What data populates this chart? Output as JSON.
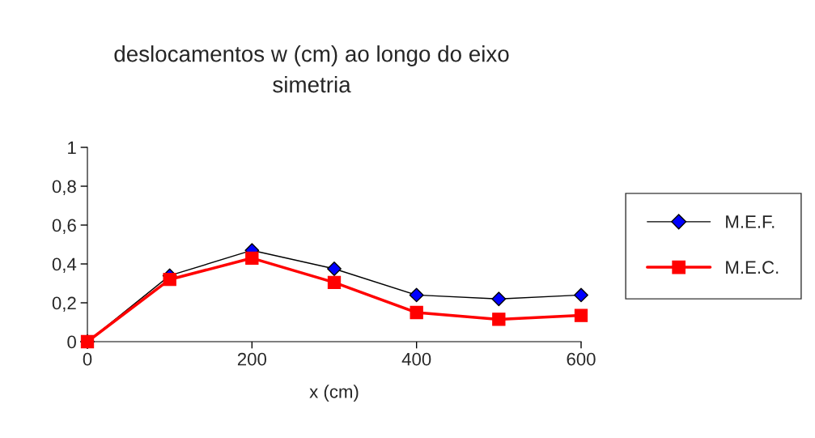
{
  "chart_data": {
    "type": "line",
    "title": "deslocamentos w (cm) ao longo do eixo\nsimetria",
    "xlabel": "x (cm)",
    "x": [
      0,
      100,
      200,
      300,
      400,
      500,
      600
    ],
    "series": [
      {
        "name": "M.E.F.",
        "color": "#000000",
        "colors": [
          "#0000ff",
          "#0000ff",
          "#0000ff",
          "#0000ff",
          "#0000ff",
          "#0000ff",
          "#0000ff"
        ],
        "marker": "diamond",
        "values": [
          0,
          0.34,
          0.47,
          0.375,
          0.24,
          0.22,
          0.24
        ]
      },
      {
        "name": "M.E.C.",
        "color": "#ff0000",
        "marker": "square",
        "values": [
          0,
          0.32,
          0.43,
          0.305,
          0.15,
          0.115,
          0.135
        ]
      }
    ],
    "xlim": [
      0,
      600
    ],
    "xticks": [
      0,
      200,
      400,
      600
    ],
    "ylim": [
      0,
      1
    ],
    "yticks": [
      0,
      {
        "value": 0.2,
        "label": "0,2"
      },
      {
        "value": 0.4,
        "label": "0,4"
      },
      {
        "value": 0.6,
        "label": "0,6"
      },
      {
        "value": 0.8,
        "label": "0,8"
      },
      1
    ],
    "grid": false,
    "legend": "right"
  }
}
